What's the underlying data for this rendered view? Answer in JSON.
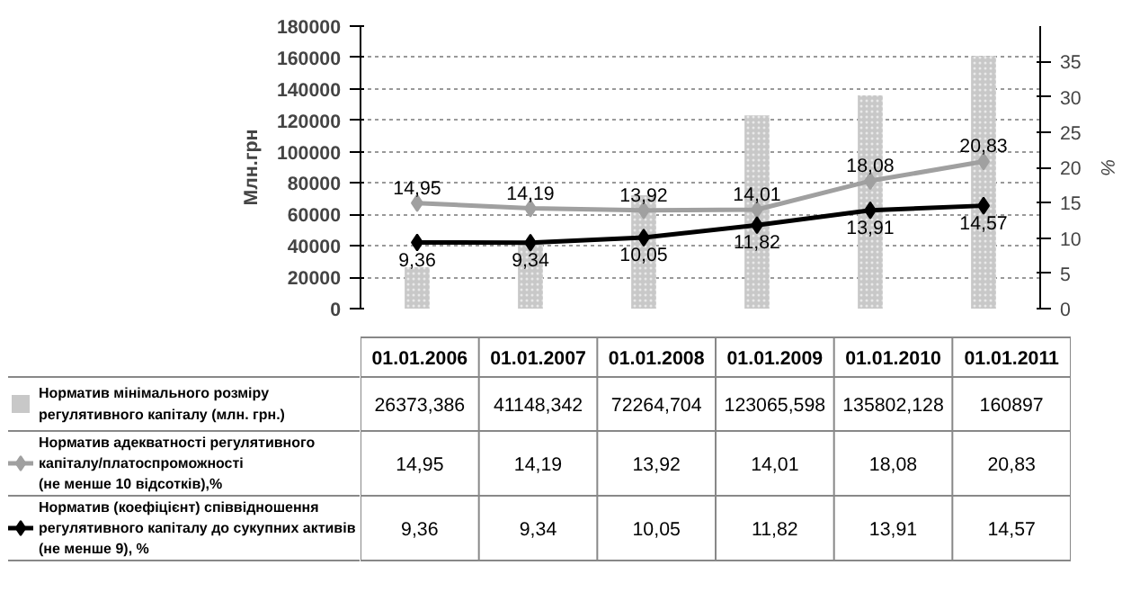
{
  "chart_data": {
    "type": "bar",
    "categories": [
      "01.01.2006",
      "01.01.2007",
      "01.01.2008",
      "01.01.2009",
      "01.01.2010",
      "01.01.2011"
    ],
    "ylabel": "Млн.грн",
    "y2label": "%",
    "ylim": [
      0,
      180000
    ],
    "yticks": [
      0,
      20000,
      40000,
      60000,
      80000,
      100000,
      120000,
      140000,
      160000,
      180000
    ],
    "y2lim": [
      0,
      40
    ],
    "y2ticks": [
      0,
      5,
      10,
      15,
      20,
      25,
      30,
      35
    ],
    "grid": "y",
    "legend": "bottom",
    "marker": "diamond",
    "tick_labels": "y",
    "series": [
      {
        "name": "Норматив мінімального розміру\nрегулятивного капіталу (млн. грн.)",
        "color": "#c8c8c8",
        "values": [
          26373.386,
          41148.342,
          72264.704,
          123065.598,
          135802.128,
          160897
        ],
        "value_labels": [
          "26373,386",
          "41148,342",
          "72264,704",
          "123065,598",
          "135802,128",
          "160897"
        ]
      },
      {
        "name": "Норматив адекватності регулятивного\nкапіталу/платоспроможності\n(не менше 10 відсотків),%",
        "type": "line",
        "axis": "y2",
        "color": "#a0a0a0",
        "values": [
          14.95,
          14.19,
          13.92,
          14.01,
          18.08,
          20.83
        ],
        "value_labels": [
          "14,95",
          "14,19",
          "13,92",
          "14,01",
          "18,08",
          "20,83"
        ]
      },
      {
        "name": "Норматив (коефіцієнт) співвідношення\nрегулятивного капіталу до сукупних активів\n(не менше 9), %",
        "type": "line",
        "axis": "y2",
        "color": "#000000",
        "values": [
          9.36,
          9.34,
          10.05,
          11.82,
          13.91,
          14.57
        ],
        "value_labels": [
          "9,36",
          "9,34",
          "10,05",
          "11,82",
          "13,91",
          "14,57"
        ]
      }
    ]
  }
}
